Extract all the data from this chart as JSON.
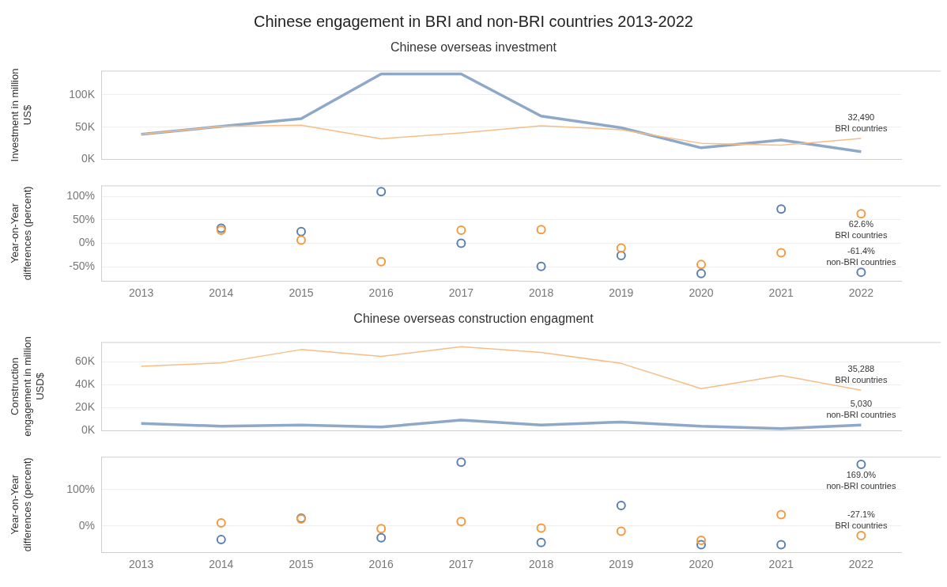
{
  "chart_data": [
    {
      "type": "line",
      "title": "Chinese engagement in BRI and non-BRI countries 2013-2022",
      "subtitle": "Chinese overseas investment",
      "ylabel": "Investment in million US$",
      "categories": [
        "2013",
        "2014",
        "2015",
        "2016",
        "2017",
        "2018",
        "2019",
        "2020",
        "2021",
        "2022"
      ],
      "series": [
        {
          "name": "BRI countries",
          "color": "#f7bd85",
          "values": [
            39000,
            51000,
            53000,
            32000,
            41000,
            52000,
            46000,
            25000,
            22000,
            32490
          ],
          "value_labels": [
            null,
            null,
            null,
            null,
            null,
            null,
            null,
            null,
            null,
            "32,490"
          ]
        },
        {
          "color": "#8ea8c8",
          "values": [
            39000,
            51000,
            63000,
            132000,
            132000,
            67000,
            49000,
            18000,
            30000,
            12000
          ]
        }
      ],
      "ylim": [
        0,
        137000
      ],
      "yticks": [
        {
          "value": 0,
          "label": "0K"
        },
        {
          "value": 50000,
          "label": "50K"
        },
        {
          "value": 100000,
          "label": "100K"
        }
      ],
      "grid": "y",
      "tick_labels": "y"
    },
    {
      "type": "scatter",
      "ylabel": "Year-on-Year differences (percent)",
      "categories": [
        "2013",
        "2014",
        "2015",
        "2016",
        "2017",
        "2018",
        "2019",
        "2020",
        "2021",
        "2022"
      ],
      "marker": "circle",
      "series": [
        {
          "name": "BRI countries",
          "color": "#f39a3f",
          "values": [
            null,
            28,
            7,
            -39,
            28,
            29,
            -10,
            -45,
            -20,
            62.6
          ],
          "value_labels": [
            null,
            null,
            null,
            null,
            null,
            null,
            null,
            null,
            null,
            "62.6%"
          ]
        },
        {
          "name": "non-BRI countries",
          "color": "#5b7fb0",
          "values": [
            null,
            32,
            25,
            110,
            0,
            -49,
            -26,
            -64,
            73,
            -61.4
          ],
          "value_labels": [
            null,
            null,
            null,
            null,
            null,
            null,
            null,
            null,
            null,
            "-61.4%"
          ]
        }
      ],
      "ylim": [
        -80,
        123
      ],
      "yticks": [
        {
          "value": -50,
          "label": "-50%"
        },
        {
          "value": 0,
          "label": "0%"
        },
        {
          "value": 50,
          "label": "50%"
        },
        {
          "value": 100,
          "label": "100%"
        }
      ],
      "grid": "y"
    },
    {
      "type": "line",
      "subtitle": "Chinese overseas construction engagment",
      "ylabel": "Construction engagement in million USD$",
      "categories": [
        "2013",
        "2014",
        "2015",
        "2016",
        "2017",
        "2018",
        "2019",
        "2020",
        "2021",
        "2022"
      ],
      "series": [
        {
          "name": "BRI countries",
          "color": "#f7bd85",
          "values": [
            56000,
            59000,
            70500,
            64500,
            73000,
            68000,
            58500,
            36600,
            48000,
            35288
          ],
          "value_labels": [
            null,
            null,
            null,
            null,
            null,
            null,
            null,
            null,
            null,
            "35,288"
          ]
        },
        {
          "name": "non-BRI countries",
          "color": "#8ea8c8",
          "values": [
            6500,
            4000,
            5000,
            3300,
            9300,
            5000,
            7700,
            4000,
            1900,
            5030
          ],
          "value_labels": [
            null,
            null,
            null,
            null,
            null,
            null,
            null,
            null,
            null,
            "5,030"
          ]
        }
      ],
      "ylim": [
        0,
        77000
      ],
      "yticks": [
        {
          "value": 0,
          "label": "0K"
        },
        {
          "value": 20000,
          "label": "20K"
        },
        {
          "value": 40000,
          "label": "40K"
        },
        {
          "value": 60000,
          "label": "60K"
        }
      ],
      "grid": "y",
      "tick_labels": "y"
    },
    {
      "type": "scatter",
      "ylabel": "Year-on-Year differences (percent)",
      "categories": [
        "2013",
        "2014",
        "2015",
        "2016",
        "2017",
        "2018",
        "2019",
        "2020",
        "2021",
        "2022"
      ],
      "marker": "circle",
      "series": [
        {
          "name": "BRI countries",
          "color": "#f39a3f",
          "values": [
            null,
            8,
            19,
            -8,
            12,
            -6,
            -15,
            -40,
            31,
            -27.1
          ],
          "value_labels": [
            null,
            null,
            null,
            null,
            null,
            null,
            null,
            null,
            null,
            "-27.1%"
          ]
        },
        {
          "name": "non-BRI countries",
          "color": "#5b7fb0",
          "values": [
            null,
            -38,
            21,
            -33,
            175,
            -46,
            56,
            -52,
            -52,
            169
          ],
          "value_labels": [
            null,
            null,
            null,
            null,
            null,
            null,
            null,
            null,
            null,
            "169.0%"
          ]
        }
      ],
      "ylim": [
        -73,
        190
      ],
      "yticks": [
        {
          "value": 0,
          "label": "0%"
        },
        {
          "value": 100,
          "label": "100%"
        }
      ],
      "grid": "y"
    }
  ]
}
